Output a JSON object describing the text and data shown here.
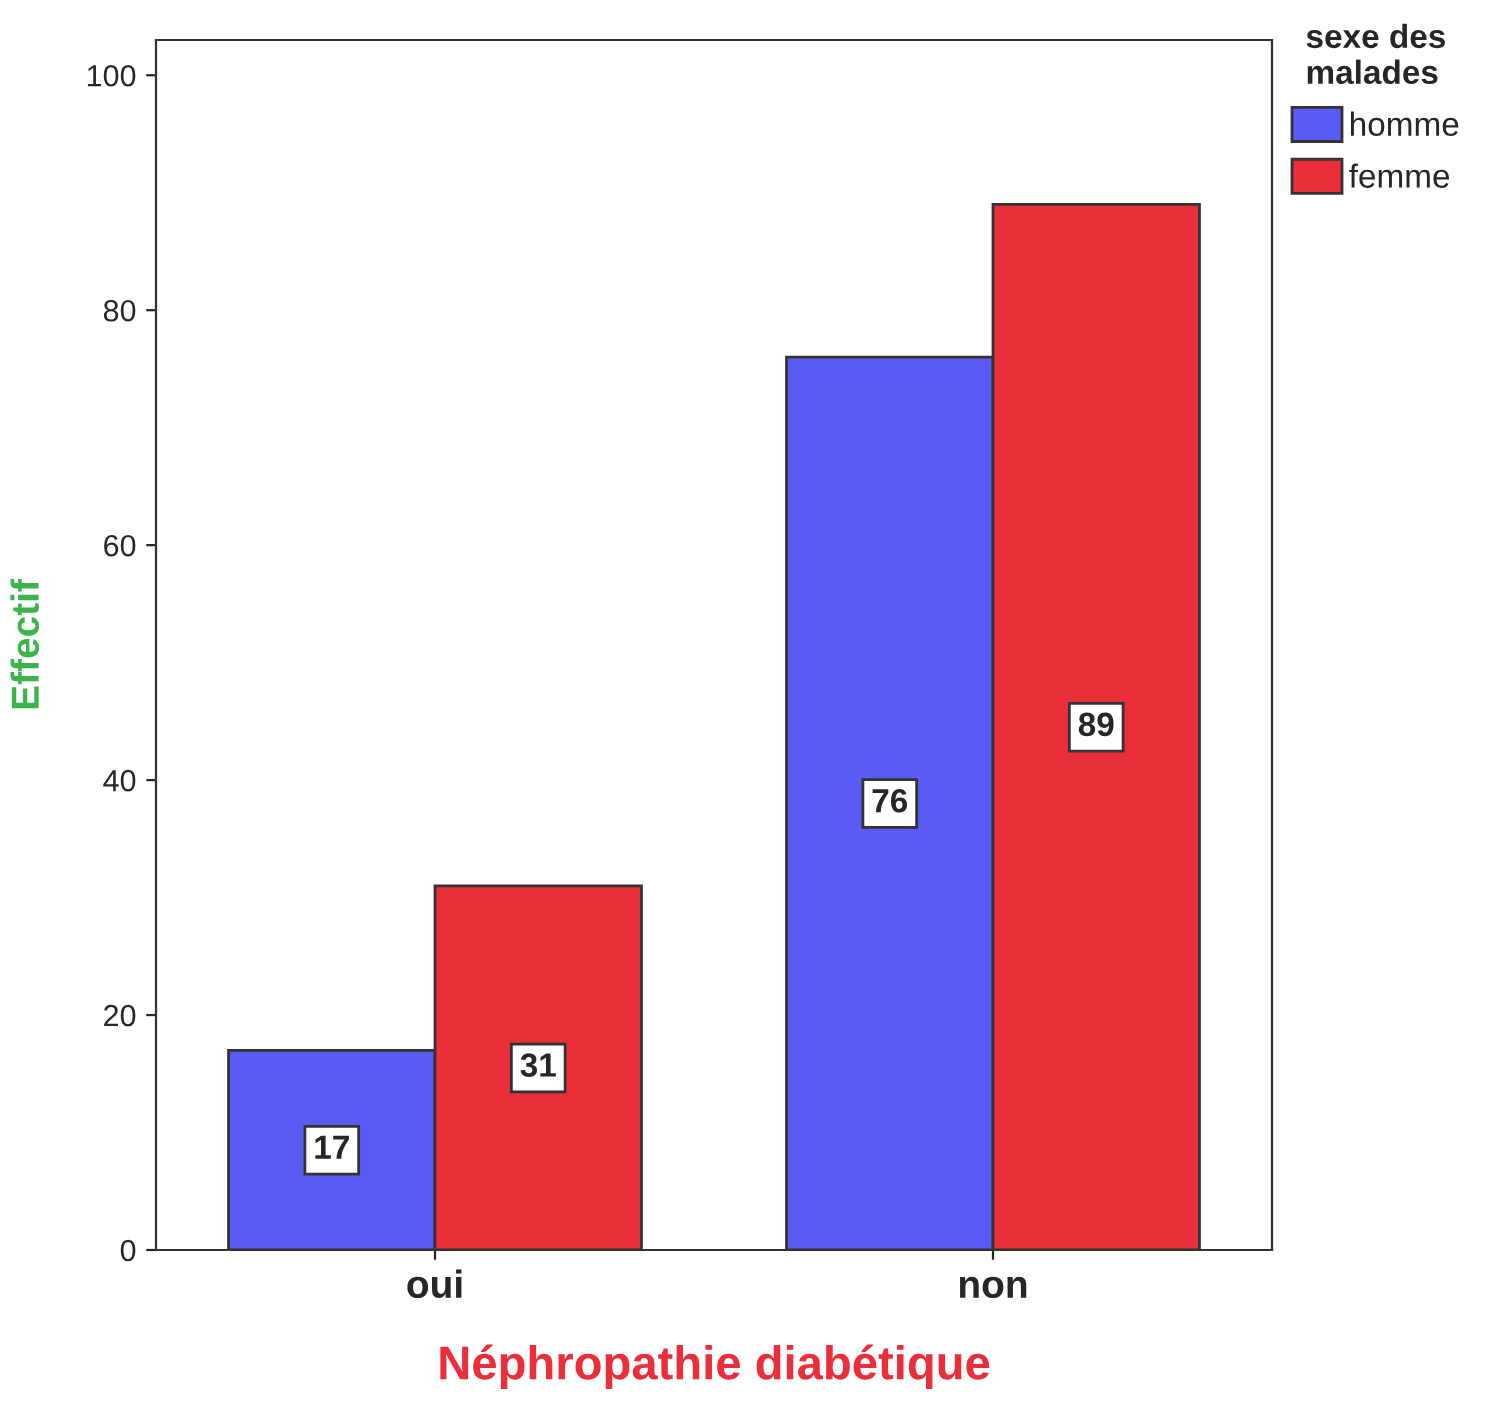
{
  "chart_data": {
    "type": "bar",
    "xlabel": "Néphropathie diabétique",
    "ylabel": "Effectif",
    "legend_title": "sexe des\nmalades",
    "categories": [
      "oui",
      "non"
    ],
    "series": [
      {
        "name": "homme",
        "color": "#5a5af5",
        "values": [
          17,
          76
        ]
      },
      {
        "name": "femme",
        "color": "#ea2f3b",
        "values": [
          31,
          89
        ]
      }
    ],
    "ylim": [
      0,
      103
    ],
    "yticks": [
      0,
      20,
      40,
      60,
      80,
      100
    ],
    "grid": false,
    "legend": "top right",
    "data_labels": true
  }
}
